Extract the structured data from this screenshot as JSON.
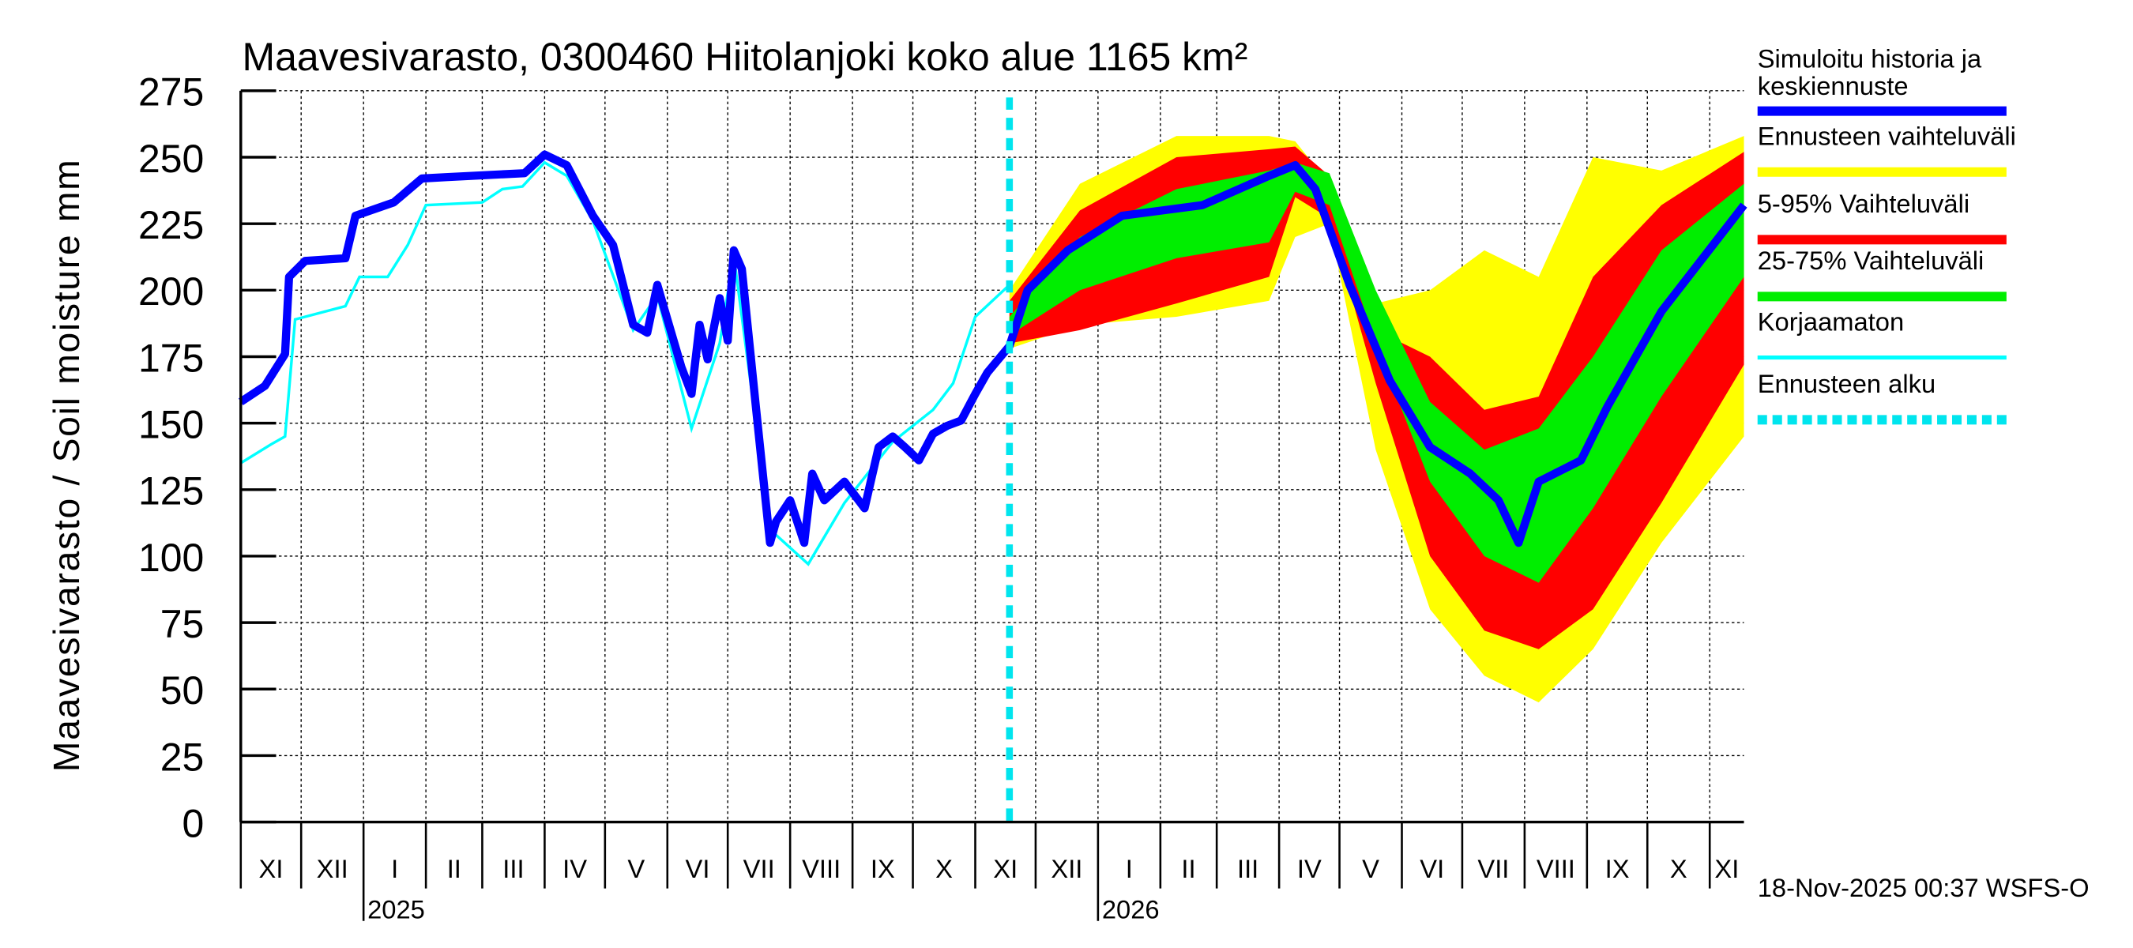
{
  "chart_data": {
    "type": "area",
    "title": "Maavesivarasto, 0300460 Hiitolanjoki koko alue 1165 km²",
    "ylabel": "Maavesivarasto / Soil moisture   mm",
    "ylim": [
      0,
      275
    ],
    "yticks": [
      0,
      25,
      50,
      75,
      100,
      125,
      150,
      175,
      200,
      225,
      250,
      275
    ],
    "xlim": [
      "2024-11-01",
      "2026-11-18"
    ],
    "grid": true,
    "legend_position": "right",
    "month_labels": [
      "XI",
      "XII",
      "I",
      "II",
      "III",
      "IV",
      "V",
      "VI",
      "VII",
      "VIII",
      "IX",
      "X",
      "XI",
      "XII",
      "I",
      "II",
      "III",
      "IV",
      "V",
      "VI",
      "VII",
      "VIII",
      "IX",
      "X",
      "XI"
    ],
    "year_labels": [
      {
        "label": "2025",
        "date": "2025-01-01"
      },
      {
        "label": "2026",
        "date": "2026-01-01"
      }
    ],
    "forecast_start": "2025-11-18",
    "footer": "18-Nov-2025 00:37 WSFS-O",
    "colors": {
      "median": "#0000ff",
      "range": "#ffff00",
      "p5_95": "#ff0000",
      "p25_75": "#00ee00",
      "uncorrected": "#00ffff",
      "forecast_start": "#00e5ee"
    },
    "legend": [
      {
        "label": "Simuloitu historia ja keskiennuste",
        "line1": "Simuloitu historia ja",
        "line2": "keskiennuste",
        "color": "#0000ff",
        "style": "thick"
      },
      {
        "label": "Ennusteen vaihteluväli",
        "color": "#ffff00",
        "style": "thick"
      },
      {
        "label": "5-95% Vaihteluväli",
        "color": "#ff0000",
        "style": "thick"
      },
      {
        "label": "25-75% Vaihteluväli",
        "color": "#00ee00",
        "style": "thick"
      },
      {
        "label": "Korjaamaton",
        "color": "#00ffff",
        "style": "thin"
      },
      {
        "label": "Ennusteen alku",
        "color": "#00e5ee",
        "style": "dashed"
      }
    ],
    "series": [
      {
        "name": "Simuloitu historia ja keskiennuste",
        "points": [
          [
            "2024-11-01",
            158
          ],
          [
            "2024-11-13",
            164
          ],
          [
            "2024-11-23",
            176
          ],
          [
            "2024-11-25",
            205
          ],
          [
            "2024-12-03",
            211
          ],
          [
            "2024-12-23",
            212
          ],
          [
            "2024-12-28",
            228
          ],
          [
            "2025-01-16",
            233
          ],
          [
            "2025-01-30",
            242
          ],
          [
            "2025-02-11",
            242.5
          ],
          [
            "2025-03-22",
            244
          ],
          [
            "2025-04-01",
            251
          ],
          [
            "2025-04-12",
            247
          ],
          [
            "2025-04-25",
            228
          ],
          [
            "2025-05-05",
            217
          ],
          [
            "2025-05-15",
            187
          ],
          [
            "2025-05-22",
            184
          ],
          [
            "2025-05-27",
            202
          ],
          [
            "2025-06-01",
            189
          ],
          [
            "2025-06-08",
            171
          ],
          [
            "2025-06-13",
            161
          ],
          [
            "2025-06-17",
            187
          ],
          [
            "2025-06-21",
            174
          ],
          [
            "2025-06-27",
            197
          ],
          [
            "2025-07-01",
            181
          ],
          [
            "2025-07-04",
            215
          ],
          [
            "2025-07-08",
            208
          ],
          [
            "2025-07-15",
            156
          ],
          [
            "2025-07-22",
            105
          ],
          [
            "2025-07-25",
            113
          ],
          [
            "2025-08-01",
            121
          ],
          [
            "2025-08-08",
            105
          ],
          [
            "2025-08-12",
            131
          ],
          [
            "2025-08-18",
            121
          ],
          [
            "2025-08-28",
            128
          ],
          [
            "2025-09-07",
            118
          ],
          [
            "2025-09-14",
            141
          ],
          [
            "2025-09-21",
            145
          ],
          [
            "2025-09-27",
            141
          ],
          [
            "2025-10-04",
            136
          ],
          [
            "2025-10-11",
            146
          ],
          [
            "2025-10-18",
            149
          ],
          [
            "2025-10-25",
            151
          ],
          [
            "2025-11-01",
            161
          ],
          [
            "2025-11-07",
            169
          ],
          [
            "2025-11-18",
            179
          ],
          [
            "2025-11-27",
            200
          ],
          [
            "2025-12-17",
            215
          ],
          [
            "2026-01-13",
            228
          ],
          [
            "2026-02-22",
            232
          ],
          [
            "2026-03-27",
            243
          ],
          [
            "2026-04-09",
            247
          ],
          [
            "2026-04-19",
            238
          ],
          [
            "2026-05-06",
            202
          ],
          [
            "2026-05-26",
            166
          ],
          [
            "2026-06-15",
            141
          ],
          [
            "2026-07-05",
            131
          ],
          [
            "2026-07-19",
            121
          ],
          [
            "2026-07-29",
            105
          ],
          [
            "2026-08-08",
            128
          ],
          [
            "2026-08-29",
            136
          ],
          [
            "2026-09-11",
            156
          ],
          [
            "2026-10-08",
            192
          ],
          [
            "2026-11-18",
            232
          ]
        ]
      },
      {
        "name": "Korjaamaton",
        "points": [
          [
            "2024-11-01",
            135
          ],
          [
            "2024-11-16",
            142
          ],
          [
            "2024-11-23",
            145
          ],
          [
            "2024-11-28",
            189
          ],
          [
            "2024-12-23",
            194
          ],
          [
            "2024-12-30",
            205
          ],
          [
            "2025-01-13",
            205
          ],
          [
            "2025-01-23",
            217
          ],
          [
            "2025-02-01",
            232
          ],
          [
            "2025-03-01",
            233
          ],
          [
            "2025-03-11",
            238
          ],
          [
            "2025-03-21",
            239
          ],
          [
            "2025-04-01",
            248
          ],
          [
            "2025-04-12",
            243
          ],
          [
            "2025-04-25",
            226
          ],
          [
            "2025-05-15",
            185
          ],
          [
            "2025-05-27",
            198
          ],
          [
            "2025-06-13",
            148
          ],
          [
            "2025-06-27",
            180
          ],
          [
            "2025-07-04",
            213
          ],
          [
            "2025-07-22",
            110
          ],
          [
            "2025-08-10",
            97
          ],
          [
            "2025-08-28",
            120
          ],
          [
            "2025-09-21",
            143
          ],
          [
            "2025-10-11",
            155
          ],
          [
            "2025-10-21",
            165
          ],
          [
            "2025-11-01",
            190
          ],
          [
            "2025-11-18",
            202
          ]
        ]
      },
      {
        "name": "Ennusteen vaihteluväli",
        "dates": [
          "2025-11-18",
          "2025-12-23",
          "2026-02-09",
          "2026-03-27",
          "2026-04-09",
          "2026-04-26",
          "2026-05-19",
          "2026-06-15",
          "2026-07-12",
          "2026-08-08",
          "2026-09-04",
          "2026-10-08",
          "2026-11-18"
        ],
        "low": [
          178,
          187,
          190,
          196,
          220,
          225,
          140,
          80,
          55,
          45,
          65,
          105,
          145
        ],
        "high": [
          200,
          240,
          258,
          258,
          256,
          240,
          195,
          200,
          215,
          205,
          250,
          245,
          258
        ]
      },
      {
        "name": "5-95% Vaihteluväli",
        "dates": [
          "2025-11-18",
          "2025-12-23",
          "2026-02-09",
          "2026-03-27",
          "2026-04-09",
          "2026-04-26",
          "2026-05-19",
          "2026-06-15",
          "2026-07-12",
          "2026-08-08",
          "2026-09-04",
          "2026-10-08",
          "2026-11-18"
        ],
        "low": [
          180,
          185,
          195,
          205,
          235,
          227,
          165,
          100,
          72,
          65,
          80,
          120,
          172
        ],
        "high": [
          196,
          230,
          250,
          253,
          254,
          243,
          185,
          175,
          155,
          160,
          205,
          232,
          252
        ]
      },
      {
        "name": "25-75% Vaihteluväli",
        "dates": [
          "2025-11-18",
          "2025-12-23",
          "2026-02-09",
          "2026-03-27",
          "2026-04-09",
          "2026-04-26",
          "2026-05-19",
          "2026-06-15",
          "2026-07-12",
          "2026-08-08",
          "2026-09-04",
          "2026-10-08",
          "2026-11-18"
        ],
        "low": [
          183,
          200,
          212,
          218,
          237,
          232,
          180,
          128,
          100,
          90,
          118,
          160,
          205
        ],
        "high": [
          190,
          220,
          238,
          245,
          248,
          244,
          200,
          158,
          140,
          148,
          175,
          215,
          240
        ]
      }
    ]
  }
}
